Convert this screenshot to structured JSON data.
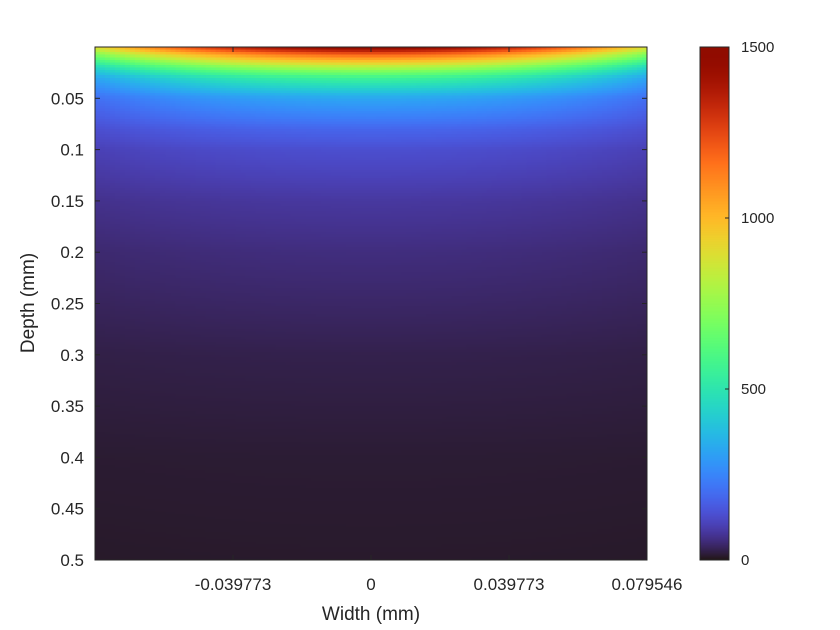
{
  "chart_data": {
    "type": "heatmap",
    "title": "",
    "xlabel": "Width (mm)",
    "ylabel": "Depth (mm)",
    "xlim": [
      -0.079546,
      0.079546
    ],
    "ylim": [
      0,
      0.5
    ],
    "y_reversed": true,
    "x_ticks": [
      -0.039773,
      0,
      0.039773,
      0.079546
    ],
    "x_tick_labels": [
      "-0.039773",
      "0",
      "0.039773",
      "0.079546"
    ],
    "y_ticks": [
      0.05,
      0.1,
      0.15,
      0.2,
      0.25,
      0.3,
      0.35,
      0.4,
      0.45,
      0.5
    ],
    "y_tick_labels": [
      "0.05",
      "0.1",
      "0.15",
      "0.2",
      "0.25",
      "0.3",
      "0.35",
      "0.4",
      "0.45",
      "0.5"
    ],
    "colorbar": {
      "clim": [
        0,
        1500
      ],
      "ticks": [
        0,
        500,
        1000,
        1500
      ],
      "tick_labels": [
        "0",
        "500",
        "1000",
        "1500"
      ],
      "colormap": "turbo"
    },
    "field": {
      "description_of_values": "value decreases with depth; highest at surface center",
      "surface_center_value": 1500,
      "surface_edge_value": 900,
      "sample_profile_depth": [
        0,
        0.01,
        0.02,
        0.03,
        0.05,
        0.08,
        0.1,
        0.15,
        0.2,
        0.3,
        0.4,
        0.5
      ],
      "sample_profile_center_value": [
        1500,
        1100,
        800,
        560,
        320,
        180,
        130,
        80,
        55,
        25,
        12,
        8
      ],
      "sample_profile_edge_value": [
        900,
        650,
        450,
        320,
        200,
        130,
        100,
        65,
        45,
        22,
        11,
        7
      ]
    },
    "grid": false
  },
  "colors": {
    "axis": "#262626",
    "background": "#ffffff"
  }
}
